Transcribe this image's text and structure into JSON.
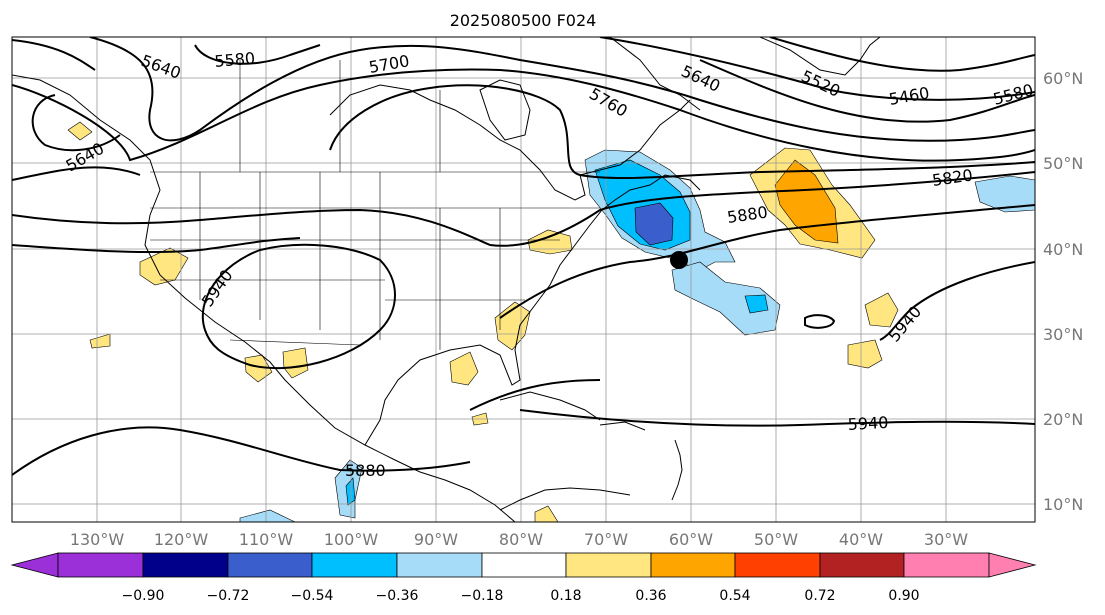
{
  "title": "2025080500 F024",
  "lon_labels": [
    "130°W",
    "120°W",
    "110°W",
    "100°W",
    "90°W",
    "80°W",
    "70°W",
    "60°W",
    "50°W",
    "40°W",
    "30°W"
  ],
  "lat_labels": [
    "60°N",
    "50°N",
    "40°N",
    "30°N",
    "20°N",
    "10°N"
  ],
  "contour_labels": [
    "5640",
    "5580",
    "5700",
    "5760",
    "5640",
    "5520",
    "5460",
    "5580",
    "5640",
    "5820",
    "5880",
    "5940",
    "5940",
    "5940",
    "5880"
  ],
  "colorbar": {
    "ticks": [
      "−0.90",
      "−0.72",
      "−0.54",
      "−0.36",
      "−0.18",
      "0.18",
      "0.36",
      "0.54",
      "0.72",
      "0.90"
    ],
    "colors": [
      "#9b30d9",
      "#00008b",
      "#3a5fcd",
      "#00bfff",
      "#a6dcf8",
      "#ffffff",
      "#ffe680",
      "#ffa500",
      "#ff4000",
      "#b22222",
      "#ff80b0"
    ]
  },
  "marker": {
    "lat": 38.8,
    "lon": -66.0,
    "color": "#000000"
  }
}
